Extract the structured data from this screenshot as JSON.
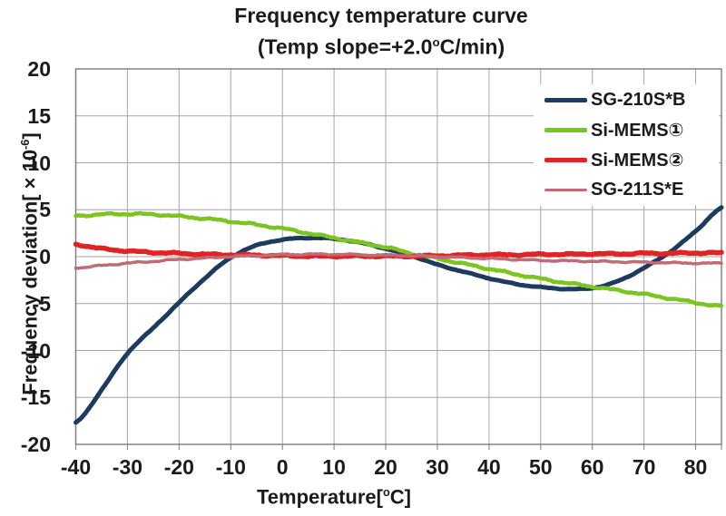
{
  "title": {
    "text": "Frequency temperature curve",
    "subtitle_pre": "(Temp slope=+2.0",
    "subtitle_sup": "o",
    "subtitle_post": "C/min)"
  },
  "axes": {
    "x_label_pre": "Temperature[",
    "x_label_sup": "o",
    "x_label_post": "C]",
    "y_label_pre": "Frequency deviation[ × 10",
    "y_label_sup": "-6",
    "y_label_post": "]"
  },
  "styles": {
    "background": "#ffffff",
    "grid_color": "#a6a6a6",
    "frame_color": "#7a7a7a",
    "text_color": "#1b1b1b"
  },
  "chart_data": {
    "type": "line",
    "title": "Frequency temperature curve",
    "subtitle": "(Temp slope=+2.0°C/min)",
    "xlabel": "Temperature[°C]",
    "ylabel": "Frequency deviation[ × 10⁻⁶]",
    "xlim": [
      -40,
      85
    ],
    "ylim": [
      -20,
      20
    ],
    "grid": true,
    "legend_position": "top-right-inside",
    "x_ticks": [
      -40,
      -30,
      -20,
      -10,
      0,
      10,
      20,
      30,
      40,
      50,
      60,
      70,
      80
    ],
    "y_ticks": [
      20,
      15,
      10,
      5,
      0,
      -5,
      -10,
      -15,
      -20
    ],
    "x": [
      -40,
      -35,
      -30,
      -25,
      -20,
      -15,
      -10,
      -5,
      0,
      5,
      10,
      15,
      20,
      25,
      30,
      35,
      40,
      45,
      50,
      55,
      60,
      65,
      70,
      75,
      80,
      85
    ],
    "series": [
      {
        "name": "SG-210S*B",
        "key": "sg-210sb",
        "color": "#1e3a5c",
        "width": 5,
        "noise": 0.03,
        "values": [
          -17.7,
          -14.2,
          -10.3,
          -7.6,
          -4.9,
          -2.3,
          -0.1,
          1.2,
          1.8,
          2.0,
          1.9,
          1.5,
          0.85,
          0.1,
          -0.85,
          -1.6,
          -2.3,
          -2.9,
          -3.25,
          -3.45,
          -3.35,
          -2.6,
          -1.2,
          0.5,
          2.7,
          5.2
        ]
      },
      {
        "name": "Si-MEMS①",
        "key": "si-mems-1",
        "color": "#7cc41f",
        "width": 4.5,
        "noise": 0.07,
        "values": [
          4.35,
          4.5,
          4.55,
          4.5,
          4.3,
          4.05,
          3.75,
          3.4,
          3.0,
          2.5,
          2.0,
          1.5,
          1.0,
          0.35,
          -0.2,
          -0.75,
          -1.3,
          -1.85,
          -2.35,
          -2.8,
          -3.2,
          -3.6,
          -4.0,
          -4.45,
          -4.9,
          -5.3
        ]
      },
      {
        "name": "Si-MEMS②",
        "key": "si-mems-2",
        "color": "#e02426",
        "width": 5.5,
        "noise": 0.06,
        "values": [
          1.3,
          0.85,
          0.6,
          0.45,
          0.35,
          0.25,
          0.2,
          0.15,
          0.1,
          0.05,
          0.05,
          0.05,
          0.05,
          0.05,
          0.1,
          0.15,
          0.2,
          0.2,
          0.25,
          0.25,
          0.3,
          0.3,
          0.35,
          0.35,
          0.4,
          0.4
        ]
      },
      {
        "name": "SG-211S*E",
        "key": "sg-211se",
        "color": "#c06b76",
        "width": 3.5,
        "noise": 0.05,
        "values": [
          -1.2,
          -0.95,
          -0.7,
          -0.5,
          -0.3,
          -0.15,
          0.0,
          0.1,
          0.2,
          0.25,
          0.25,
          0.2,
          0.15,
          0.1,
          0.0,
          -0.1,
          -0.2,
          -0.3,
          -0.4,
          -0.45,
          -0.5,
          -0.55,
          -0.6,
          -0.65,
          -0.7,
          -0.7
        ]
      }
    ]
  }
}
